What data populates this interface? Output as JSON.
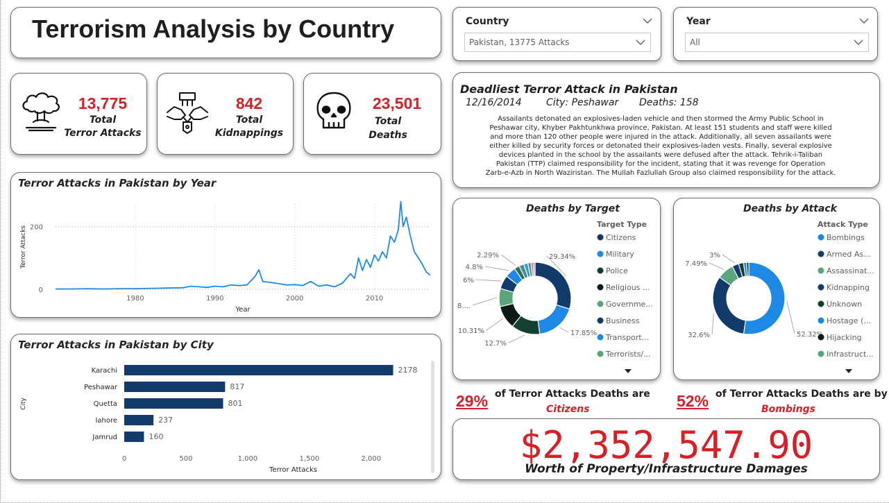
{
  "header": {
    "title": "Terrorism Analysis by Country"
  },
  "filters": {
    "country": {
      "label": "Country",
      "value": "Pakistan, 13775 Attacks"
    },
    "year": {
      "label": "Year",
      "value": "All"
    }
  },
  "kpis": [
    {
      "value": "13,775",
      "label1": "Total",
      "label2": "Terror Attacks",
      "icon": "explosion-icon"
    },
    {
      "value": "842",
      "label1": "Total",
      "label2": "Kidnappings",
      "icon": "handcuffed-hands-icon"
    },
    {
      "value": "23,501",
      "label1": "Total",
      "label2": "Deaths",
      "icon": "skull-icon"
    }
  ],
  "deadliest": {
    "title": "Deadliest Terror Attack in Pakistan",
    "date": "12/16/2014",
    "city": "City: Peshawar",
    "deaths": "Deaths: 158",
    "summary_lines": [
      "Assailants detonated an explosives-laden vehicle and then stormed the Army Public School in",
      "Peshawar city, Khyber Pakhtunkhwa province, Pakistan. At least 151 students and staff were killed",
      "and more than 120 other people were injured in the attack. Additionally, all seven assailants were",
      "either killed by security forces or detonated their explosives-laden vests. Finally, several explosive",
      "devices planted in the school by the assailants were defused after the attack. Tehrik-i-Taliban",
      "Pakistan (TTP) claimed responsibility for the incident, stating that it was revenge for Operation",
      "Zarb-e-Azb in North Waziristan. The Mullah Fazlullah Group also claimed responsibility for the attack."
    ]
  },
  "chart_data": [
    {
      "type": "line",
      "title": "Terror Attacks in Pakistan by Year",
      "xlabel": "Year",
      "ylabel": "Terror Attacks",
      "xlim": [
        1970,
        2017
      ],
      "ylim": [
        0,
        270
      ],
      "xticks": [
        1980,
        1990,
        2000,
        2010
      ],
      "yticks": [
        0,
        200
      ],
      "grid": true,
      "color": "#1e88e5",
      "points": [
        [
          1970,
          1
        ],
        [
          1972,
          1
        ],
        [
          1974,
          2
        ],
        [
          1976,
          1
        ],
        [
          1978,
          2
        ],
        [
          1980,
          2
        ],
        [
          1982,
          3
        ],
        [
          1984,
          4
        ],
        [
          1986,
          5
        ],
        [
          1987,
          10
        ],
        [
          1988,
          8
        ],
        [
          1989,
          6
        ],
        [
          1990,
          10
        ],
        [
          1991,
          8
        ],
        [
          1992,
          14
        ],
        [
          1993,
          12
        ],
        [
          1994,
          14
        ],
        [
          1995,
          40
        ],
        [
          1995.5,
          62
        ],
        [
          1996,
          25
        ],
        [
          1997,
          22
        ],
        [
          1998,
          18
        ],
        [
          1999,
          14
        ],
        [
          2000,
          15
        ],
        [
          2001,
          12
        ],
        [
          2002,
          25
        ],
        [
          2003,
          10
        ],
        [
          2004,
          14
        ],
        [
          2005,
          8
        ],
        [
          2006,
          20
        ],
        [
          2007,
          50
        ],
        [
          2007.5,
          35
        ],
        [
          2008,
          100
        ],
        [
          2008.5,
          60
        ],
        [
          2009,
          95
        ],
        [
          2009.5,
          70
        ],
        [
          2010,
          110
        ],
        [
          2010.5,
          90
        ],
        [
          2011,
          120
        ],
        [
          2011.5,
          100
        ],
        [
          2012,
          170
        ],
        [
          2012.5,
          150
        ],
        [
          2013,
          190
        ],
        [
          2013.3,
          280
        ],
        [
          2013.6,
          200
        ],
        [
          2014,
          230
        ],
        [
          2014.5,
          170
        ],
        [
          2015,
          120
        ],
        [
          2015.5,
          100
        ],
        [
          2016,
          80
        ],
        [
          2016.5,
          55
        ],
        [
          2017,
          45
        ]
      ]
    },
    {
      "type": "bar",
      "orientation": "horizontal",
      "title": "Terror Attacks in Pakistan by City",
      "xlabel": "Terror Attacks",
      "ylabel": "City",
      "categories": [
        "Karachi",
        "Peshawar",
        "Quetta",
        "lahore",
        "Jamrud"
      ],
      "values": [
        2178,
        817,
        801,
        237,
        160
      ],
      "xlim": [
        0,
        2400
      ],
      "xticks": [
        0,
        500,
        1000,
        1500,
        2000
      ],
      "xtick_labels": [
        "0",
        "500",
        "1,000",
        "1,500",
        "2,000"
      ],
      "color": "#123a6a"
    },
    {
      "type": "pie",
      "donut": true,
      "title": "Deaths by Target",
      "legend_title": "Target Type",
      "legend": [
        "Citizens",
        "Military",
        "Police",
        "Religious ...",
        "Governme...",
        "Business",
        "Transport...",
        "Terrorists/..."
      ],
      "legend_colors": [
        "#123a6a",
        "#1e88e5",
        "#0f3d2e",
        "#0d1a16",
        "#5aa67a",
        "#123a6a",
        "#1e88e5",
        "#5aa67a"
      ],
      "slices": [
        {
          "value": 29.34,
          "label": "29.34%",
          "color": "#123a6a"
        },
        {
          "value": 17.85,
          "label": "17.85%",
          "color": "#1e88e5"
        },
        {
          "value": 12.7,
          "label": "12.7%",
          "color": "#153f33"
        },
        {
          "value": 10.31,
          "label": "10.31%",
          "color": "#0d1a16"
        },
        {
          "value": 8.0,
          "label": "8....",
          "color": "#5aa67a"
        },
        {
          "value": 6.0,
          "label": "6%",
          "color": "#123a6a"
        },
        {
          "value": 4.8,
          "label": "4.8%",
          "color": "#1e88e5"
        },
        {
          "value": 2.29,
          "label": "2.29%",
          "color": "#2f6f60"
        },
        {
          "value": 2.2,
          "label": "",
          "color": "#4a8f8f"
        },
        {
          "value": 1.8,
          "label": "",
          "color": "#2ba3c8"
        },
        {
          "value": 1.4,
          "label": "",
          "color": "#6a7f8f"
        },
        {
          "value": 1.0,
          "label": "",
          "color": "#8c8c8c"
        },
        {
          "value": 0.8,
          "label": "",
          "color": "#d96aa0"
        }
      ]
    },
    {
      "type": "pie",
      "donut": true,
      "title": "Deaths by Attack",
      "legend_title": "Attack Type",
      "legend": [
        "Bombings",
        "Armed As...",
        "Assassinat...",
        "Kidnapping",
        "Unknown",
        "Hostage (...",
        "Hijacking",
        "Infrastruct..."
      ],
      "legend_colors": [
        "#1e88e5",
        "#123a6a",
        "#5aa67a",
        "#123a6a",
        "#153f33",
        "#1e88e5",
        "#0d1a16",
        "#5aa67a"
      ],
      "slices": [
        {
          "value": 52.32,
          "label": "52.32%",
          "color": "#1e88e5"
        },
        {
          "value": 32.6,
          "label": "32.6%",
          "color": "#123a6a"
        },
        {
          "value": 7.49,
          "label": "7.49%",
          "color": "#5aa67a"
        },
        {
          "value": 3.0,
          "label": "3%",
          "color": "#123a6a"
        },
        {
          "value": 2.2,
          "label": "",
          "color": "#153f33"
        },
        {
          "value": 1.4,
          "label": "",
          "color": "#1e88e5"
        },
        {
          "value": 0.99,
          "label": "",
          "color": "#0d1a16"
        }
      ]
    }
  ],
  "insights": {
    "citizens": {
      "pct": "29%",
      "text": "of Terror Attacks Deaths are",
      "highlight": "Citizens"
    },
    "bombings": {
      "pct": "52%",
      "text": "of Terror Attacks Deaths are by",
      "highlight": "Bombings"
    }
  },
  "damages": {
    "value": "$2,352,547.90",
    "label": "Worth of Property/Infrastructure Damages"
  }
}
